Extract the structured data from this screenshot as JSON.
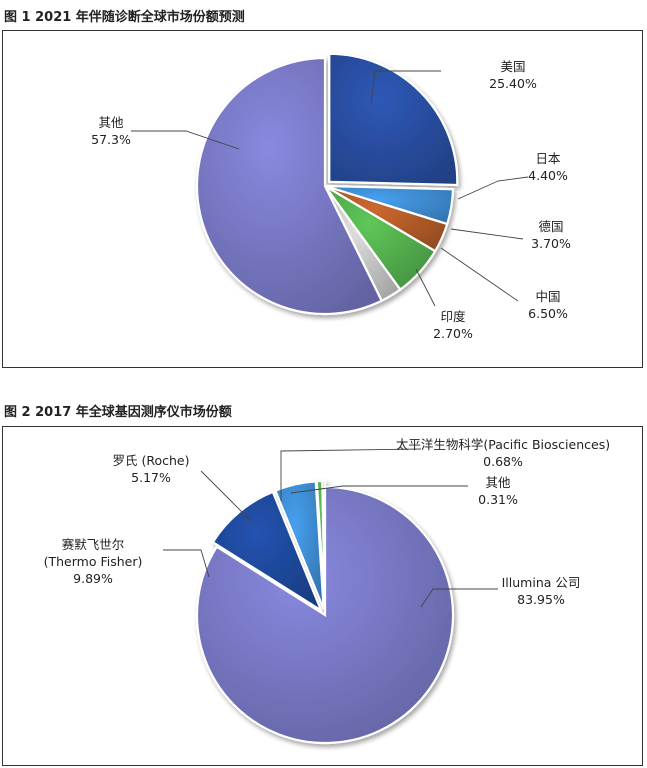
{
  "figures": [
    {
      "title": "图 1   2021 年伴随诊断全球市场份额预测"
    },
    {
      "title": "图 2   2017 年全球基因测序仪市场份额"
    }
  ],
  "chart_data": [
    {
      "type": "pie",
      "title": "图 1   2021 年伴随诊断全球市场份额预测",
      "series": [
        {
          "values": [
            25.4,
            4.4,
            3.7,
            6.5,
            2.7,
            57.3
          ]
        }
      ],
      "categories": [
        "美国",
        "日本",
        "德国",
        "中国",
        "印度",
        "其他"
      ],
      "value_labels": [
        "25.40%",
        "4.40%",
        "3.70%",
        "6.50%",
        "2.70%",
        "57.3%"
      ],
      "colors": [
        "#2a4fa3",
        "#3f8fd6",
        "#b55d2a",
        "#55b24f",
        "#c9c9c9",
        "#7a7ac8"
      ]
    },
    {
      "type": "pie",
      "title": "图 2   2017 年全球基因测序仪市场份额",
      "series": [
        {
          "values": [
            83.95,
            9.89,
            5.17,
            0.68,
            0.31
          ]
        }
      ],
      "categories": [
        "Illumina 公司",
        "赛默飞世尔 (Thermo Fisher)",
        "罗氏 (Roche)",
        "太平洋生物科学(Pacific Biosciences)",
        "其他"
      ],
      "label_lines": [
        [
          "Illumina 公司"
        ],
        [
          "赛默飞世尔",
          "(Thermo Fisher)"
        ],
        [
          "罗氏 (Roche)"
        ],
        [
          "太平洋生物科学(Pacific Biosciences)"
        ],
        [
          "其他"
        ]
      ],
      "value_labels": [
        "83.95%",
        "9.89%",
        "5.17%",
        "0.68%",
        "0.31%"
      ],
      "colors": [
        "#7a7ac8",
        "#1f4a9e",
        "#3f8fd6",
        "#55b24f",
        "#d8562a"
      ]
    }
  ]
}
